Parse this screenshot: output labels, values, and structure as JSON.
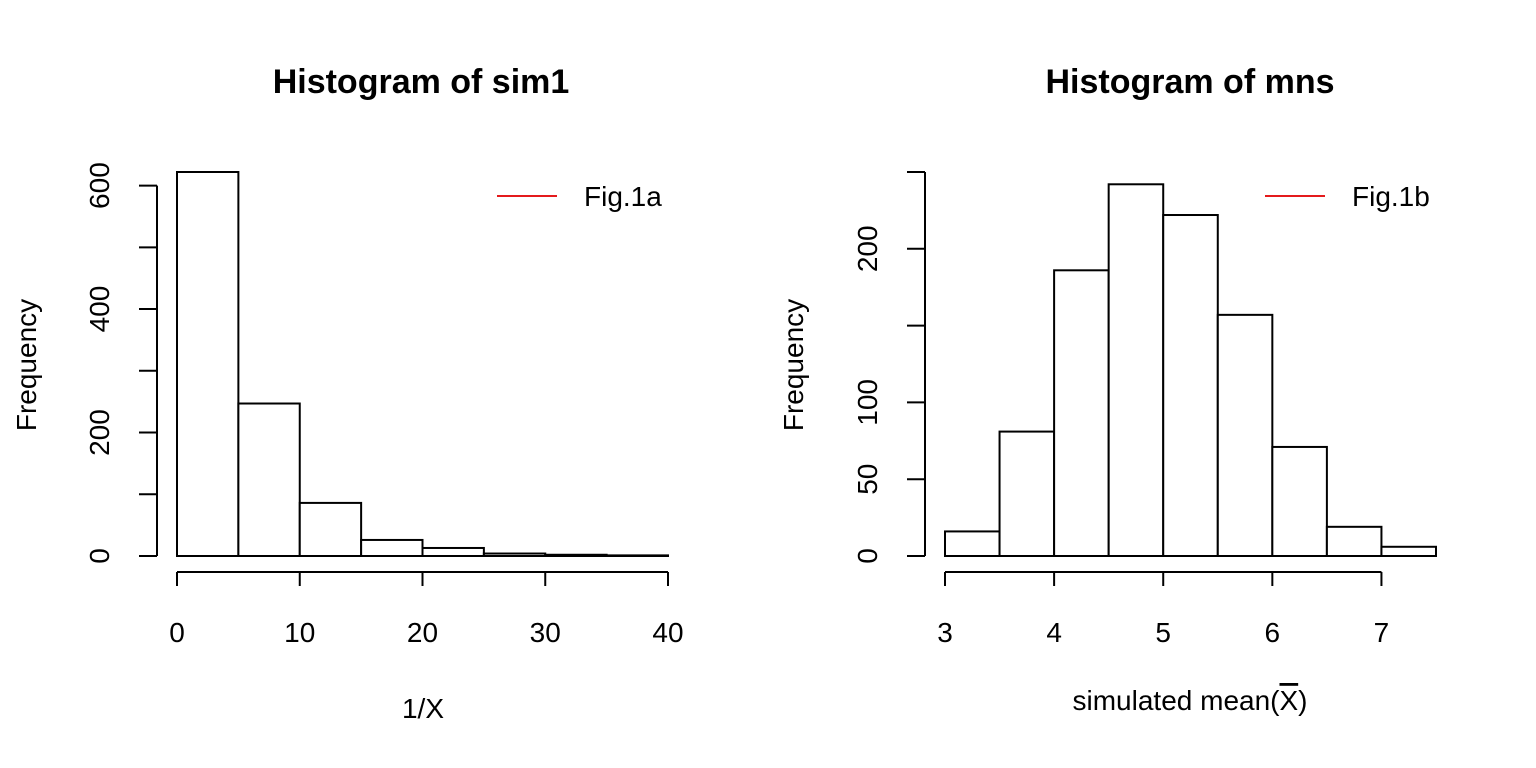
{
  "chart_data": [
    {
      "type": "bar",
      "title": "Histogram of sim1",
      "xlabel": "1/X",
      "ylabel": "Frequency",
      "bins": [
        [
          0,
          5
        ],
        [
          5,
          10
        ],
        [
          10,
          15
        ],
        [
          15,
          20
        ],
        [
          20,
          25
        ],
        [
          25,
          30
        ],
        [
          30,
          35
        ],
        [
          35,
          40
        ]
      ],
      "values": [
        622,
        247,
        86,
        26,
        13,
        4,
        2,
        1
      ],
      "xlim": [
        0,
        40
      ],
      "ylim": [
        0,
        622
      ],
      "x_ticks": [
        0,
        10,
        20,
        30,
        40
      ],
      "y_ticks": [
        0,
        100,
        200,
        300,
        400,
        500,
        600
      ],
      "y_tick_labels": [
        "0",
        "",
        "200",
        "",
        "400",
        "",
        "600"
      ],
      "legend": {
        "label": "Fig.1a",
        "color": "#e41a1c",
        "position": "top-right"
      },
      "grid": false
    },
    {
      "type": "bar",
      "title": "Histogram of mns",
      "xlabel": "simulated mean(X̄)",
      "ylabel": "Frequency",
      "bins": [
        [
          3,
          3.5
        ],
        [
          3.5,
          4
        ],
        [
          4,
          4.5
        ],
        [
          4.5,
          5
        ],
        [
          5,
          5.5
        ],
        [
          5.5,
          6
        ],
        [
          6,
          6.5
        ],
        [
          6.5,
          7
        ],
        [
          7,
          7.5
        ]
      ],
      "values": [
        16,
        81,
        186,
        242,
        222,
        157,
        71,
        19,
        6
      ],
      "xlim": [
        3,
        7.5
      ],
      "ylim": [
        0,
        250
      ],
      "x_ticks": [
        3,
        4,
        5,
        6,
        7
      ],
      "y_ticks": [
        0,
        50,
        100,
        150,
        200,
        250
      ],
      "y_tick_labels": [
        "0",
        "50",
        "100",
        "",
        "200",
        ""
      ],
      "legend": {
        "label": "Fig.1b",
        "color": "#e41a1c",
        "position": "top-right"
      },
      "grid": false
    }
  ]
}
